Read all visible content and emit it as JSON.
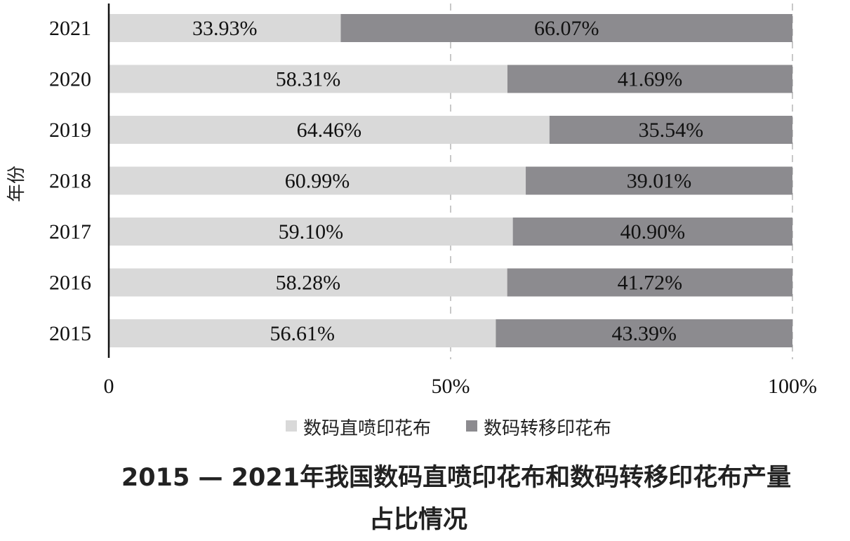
{
  "chart_data": {
    "type": "bar",
    "orientation": "horizontal",
    "stacked": true,
    "title": "2015 — 2021年我国数码直喷印花布和数码转移印花布产量占比情况",
    "title_line1": "2015 — 2021年我国数码直喷印花布和数码转移印花布产量",
    "title_line2": "占比情况",
    "ylabel": "年份",
    "xlabel": "",
    "categories": [
      "2021",
      "2020",
      "2019",
      "2018",
      "2017",
      "2016",
      "2015"
    ],
    "series": [
      {
        "name": "数码直喷印花布",
        "color": "#d9d9d9",
        "values": [
          33.93,
          58.31,
          64.46,
          60.99,
          59.1,
          58.28,
          56.61
        ],
        "labels": [
          "33.93%",
          "58.31%",
          "64.46%",
          "60.99%",
          "59.10%",
          "58.28%",
          "56.61%"
        ]
      },
      {
        "name": "数码转移印花布",
        "color": "#8c8b8f",
        "values": [
          66.07,
          41.69,
          35.54,
          39.01,
          40.9,
          41.72,
          43.39
        ],
        "labels": [
          "66.07%",
          "41.69%",
          "35.54%",
          "39.01%",
          "40.90%",
          "41.72%",
          "43.39%"
        ]
      }
    ],
    "xlim": [
      0,
      100
    ],
    "xticks": [
      0,
      50,
      100
    ],
    "xtick_labels": [
      "0",
      "50%",
      "100%"
    ],
    "grid": "dashed vertical at 50% and 100%",
    "legend": "bottom"
  }
}
